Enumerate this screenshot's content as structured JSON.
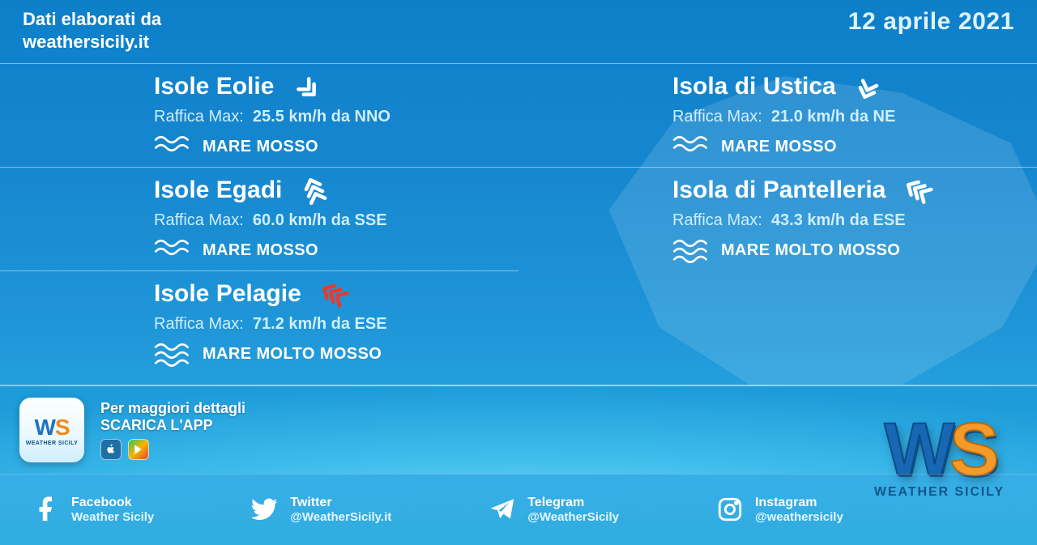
{
  "header": {
    "source_line1": "Dati elaborati da",
    "source_line2": "weathersicily.it",
    "date": "12 aprile 2021"
  },
  "colors": {
    "wind_normal": "#ffffff",
    "wind_alert": "#e63a2e",
    "text": "#ffffff",
    "subtext": "#cfeeff"
  },
  "locations": [
    {
      "name": "Isole Eolie",
      "gust_label": "Raffica Max:",
      "gust_value": "25.5 km/h da NNO",
      "sea": "MARE MOSSO",
      "sea_level": 2,
      "wind_rotation": 135,
      "wind_color": "#ffffff",
      "arrow_count": 2
    },
    {
      "name": "Isola di Ustica",
      "gust_label": "Raffica Max:",
      "gust_value": "21.0 km/h da NE",
      "sea": "MARE MOSSO",
      "sea_level": 2,
      "wind_rotation": 200,
      "wind_color": "#ffffff",
      "arrow_count": 2
    },
    {
      "name": "Isole Egadi",
      "gust_label": "Raffica Max:",
      "gust_value": "60.0 km/h da SSE",
      "sea": "MARE MOSSO",
      "sea_level": 2,
      "wind_rotation": 340,
      "wind_color": "#ffffff",
      "arrow_count": 3
    },
    {
      "name": "Isola di Pantelleria",
      "gust_label": "Raffica Max:",
      "gust_value": "43.3 km/h da ESE",
      "sea": "MARE MOLTO MOSSO",
      "sea_level": 3,
      "wind_rotation": 300,
      "wind_color": "#ffffff",
      "arrow_count": 3
    },
    {
      "name": "Isole Pelagie",
      "gust_label": "Raffica Max:",
      "gust_value": "71.2 km/h da ESE",
      "sea": "MARE MOLTO MOSSO",
      "sea_level": 3,
      "wind_rotation": 300,
      "wind_color": "#e63a2e",
      "arrow_count": 3
    }
  ],
  "footer": {
    "download_line1": "Per maggiori dettagli",
    "download_line2": "SCARICA L'APP",
    "app_tile_label": "WEATHER SICILY"
  },
  "brand": {
    "name": "WEATHER SICILY"
  },
  "socials": [
    {
      "icon": "facebook",
      "name": "Facebook",
      "handle": "Weather Sicily"
    },
    {
      "icon": "twitter",
      "name": "Twitter",
      "handle": "@WeatherSicily.it"
    },
    {
      "icon": "telegram",
      "name": "Telegram",
      "handle": "@WeatherSicily"
    },
    {
      "icon": "instagram",
      "name": "Instagram",
      "handle": "@weathersicily"
    }
  ]
}
